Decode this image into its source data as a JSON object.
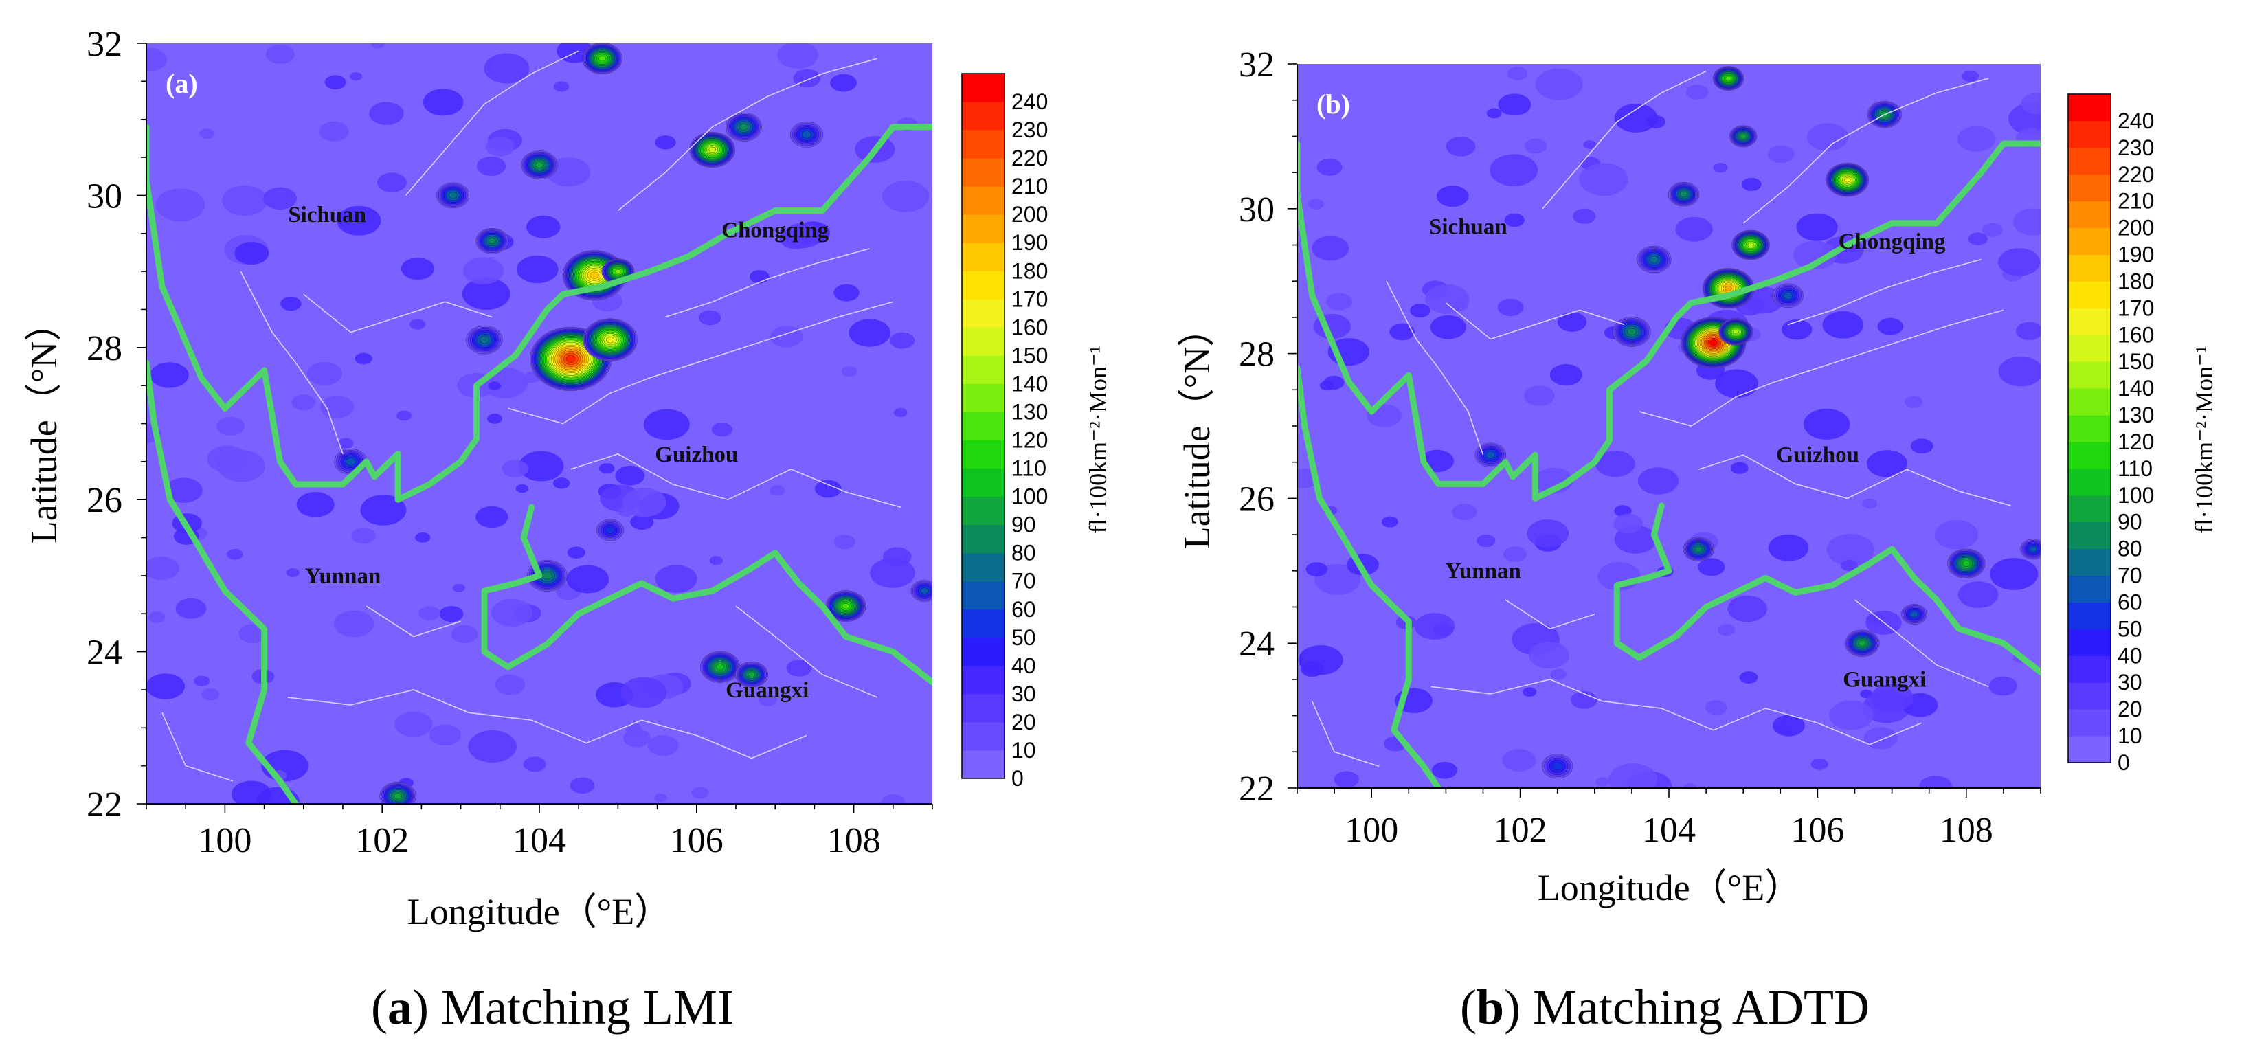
{
  "panels": [
    {
      "id": "a",
      "label": "(a)",
      "caption_bold": "a",
      "caption_rest": " Matching LMI",
      "xlabel": "Longitude（°E）",
      "ylabel": "Latitude（°N）",
      "xticks": [
        "100",
        "102",
        "104",
        "106",
        "108"
      ],
      "yticks": [
        "22",
        "24",
        "26",
        "28",
        "30",
        "32"
      ],
      "regions": [
        "Sichuan",
        "Chongqing",
        "Guizhou",
        "Yunnan",
        "Guangxi"
      ]
    },
    {
      "id": "b",
      "label": "(b)",
      "caption_bold": "b",
      "caption_rest": " Matching ADTD",
      "xlabel": "Longitude（°E）",
      "ylabel": "Latitude（°N）",
      "xticks": [
        "100",
        "102",
        "104",
        "106",
        "108"
      ],
      "yticks": [
        "22",
        "24",
        "26",
        "28",
        "30",
        "32"
      ],
      "regions": [
        "Sichuan",
        "Chongqing",
        "Guizhou",
        "Yunnan",
        "Guangxi"
      ]
    }
  ],
  "colorbar": {
    "unit": "fl·100km⁻²·Mon⁻¹",
    "levels": [
      "0",
      "10",
      "20",
      "30",
      "40",
      "50",
      "60",
      "70",
      "80",
      "90",
      "100",
      "110",
      "120",
      "130",
      "140",
      "150",
      "160",
      "170",
      "180",
      "190",
      "200",
      "210",
      "220",
      "230",
      "240"
    ],
    "colors": [
      "#7b61ff",
      "#6a4cff",
      "#5a39ff",
      "#4428ff",
      "#2a1cff",
      "#1432e6",
      "#0a57b8",
      "#0a6e8c",
      "#0b8a5c",
      "#10a83c",
      "#0fc41f",
      "#1fd80c",
      "#4be40c",
      "#7bee0e",
      "#a8f414",
      "#d2f719",
      "#f2f21c",
      "#ffe200",
      "#ffc800",
      "#ffa800",
      "#ff8c00",
      "#ff6a00",
      "#ff4a00",
      "#ff2800",
      "#ff0000"
    ]
  },
  "map_colors": {
    "background": "#7b61ff",
    "province_border": "#4fd36b",
    "county_border": "#d8d2ff"
  }
}
